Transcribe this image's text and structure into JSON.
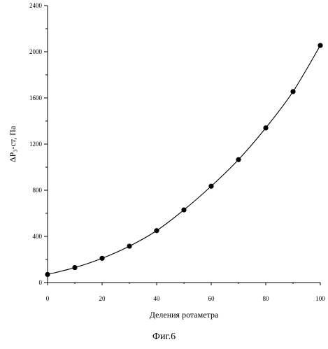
{
  "chart_data": {
    "type": "line",
    "x": [
      0,
      10,
      20,
      30,
      40,
      50,
      60,
      70,
      80,
      90,
      100
    ],
    "series": [
      {
        "values": [
          70,
          130,
          210,
          315,
          450,
          630,
          835,
          1065,
          1340,
          1655,
          2055
        ]
      }
    ],
    "xlabel": "Деления ротаметра",
    "ylabel": "ΔP₃-ст, Па",
    "xlim": [
      0,
      100
    ],
    "ylim": [
      0,
      2400
    ],
    "xticks": [
      "0",
      "20",
      "40",
      "60",
      "80",
      "100"
    ],
    "yticks": [
      "0",
      "400",
      "800",
      "1200",
      "1600",
      "2000",
      "2400"
    ],
    "markers": true,
    "grid": false,
    "line_color": "#000000"
  },
  "caption": "Фиг.6"
}
